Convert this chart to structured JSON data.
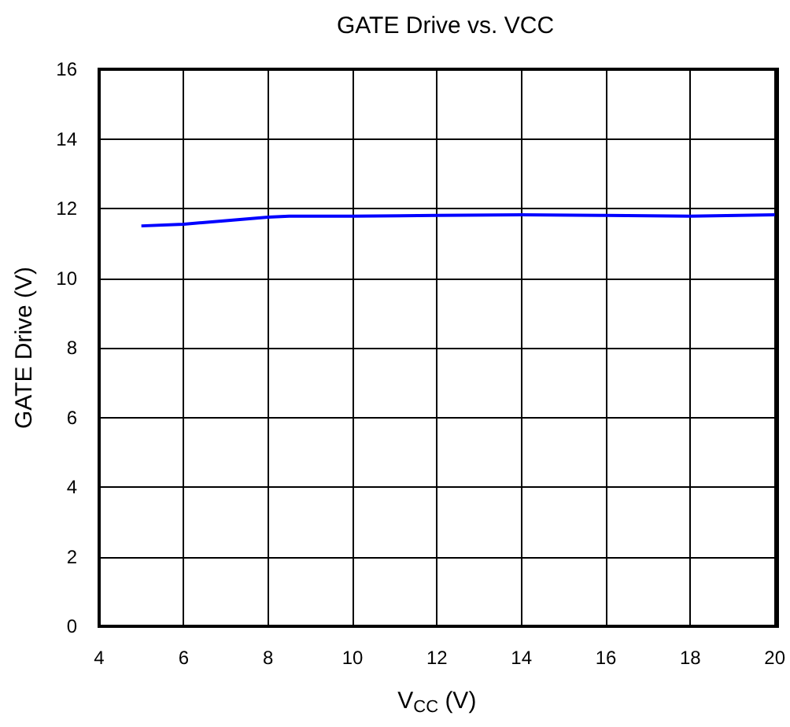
{
  "chart_data": {
    "type": "line",
    "title": "GATE Drive vs. VCC",
    "xlabel": "V$_{CC}$ (V)",
    "ylabel": "GATE Drive (V)",
    "series": [
      {
        "color": "#0000ff",
        "x": [
          5,
          6,
          7,
          8,
          8.5,
          10,
          12,
          14,
          16,
          18,
          20
        ],
        "values": [
          11.5,
          11.55,
          11.65,
          11.75,
          11.78,
          11.78,
          11.8,
          11.82,
          11.8,
          11.78,
          11.82
        ]
      }
    ],
    "xlim": [
      4,
      20
    ],
    "xticks": [
      4,
      6,
      8,
      10,
      12,
      14,
      16,
      18,
      20
    ],
    "ylim": [
      0,
      16
    ],
    "yticks": [
      0,
      2,
      4,
      6,
      8,
      10,
      12,
      14,
      16
    ],
    "grid": true,
    "marker": "none",
    "line_style": "solid"
  }
}
